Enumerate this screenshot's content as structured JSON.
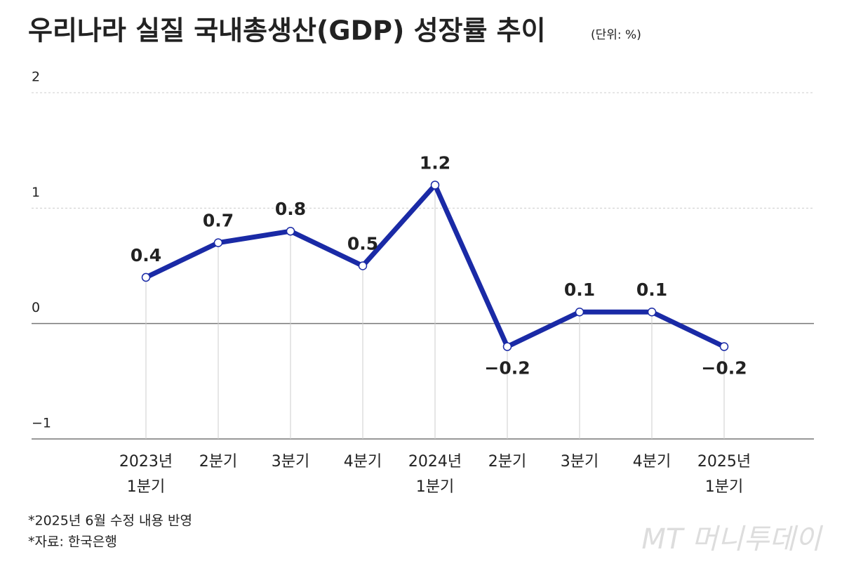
{
  "chart_data": {
    "type": "line",
    "title": "우리나라 실질 국내총생산(GDP) 성장률 추이",
    "subtitle": "(단위: %)",
    "categories": [
      "2023년\n1분기",
      "2분기",
      "3분기",
      "4분기",
      "2024년\n1분기",
      "2분기",
      "3분기",
      "4분기",
      "2025년\n1분기"
    ],
    "values": [
      0.4,
      0.7,
      0.8,
      0.5,
      1.2,
      -0.2,
      0.1,
      0.1,
      -0.2
    ],
    "value_labels": [
      "0.4",
      "0.7",
      "0.8",
      "0.5",
      "1.2",
      "−0.2",
      "0.1",
      "0.1",
      "−0.2"
    ],
    "color": "#1a2aa6",
    "ylim": [
      -1,
      2
    ],
    "yticks": [
      2,
      1,
      0,
      {
        "value": -1,
        "label": "−1"
      }
    ],
    "grid": true,
    "notes": [
      "*2025년 6월 수정 내용 반영",
      "*자료: 한국은행"
    ],
    "source_logo": "MT 머니투데이"
  }
}
